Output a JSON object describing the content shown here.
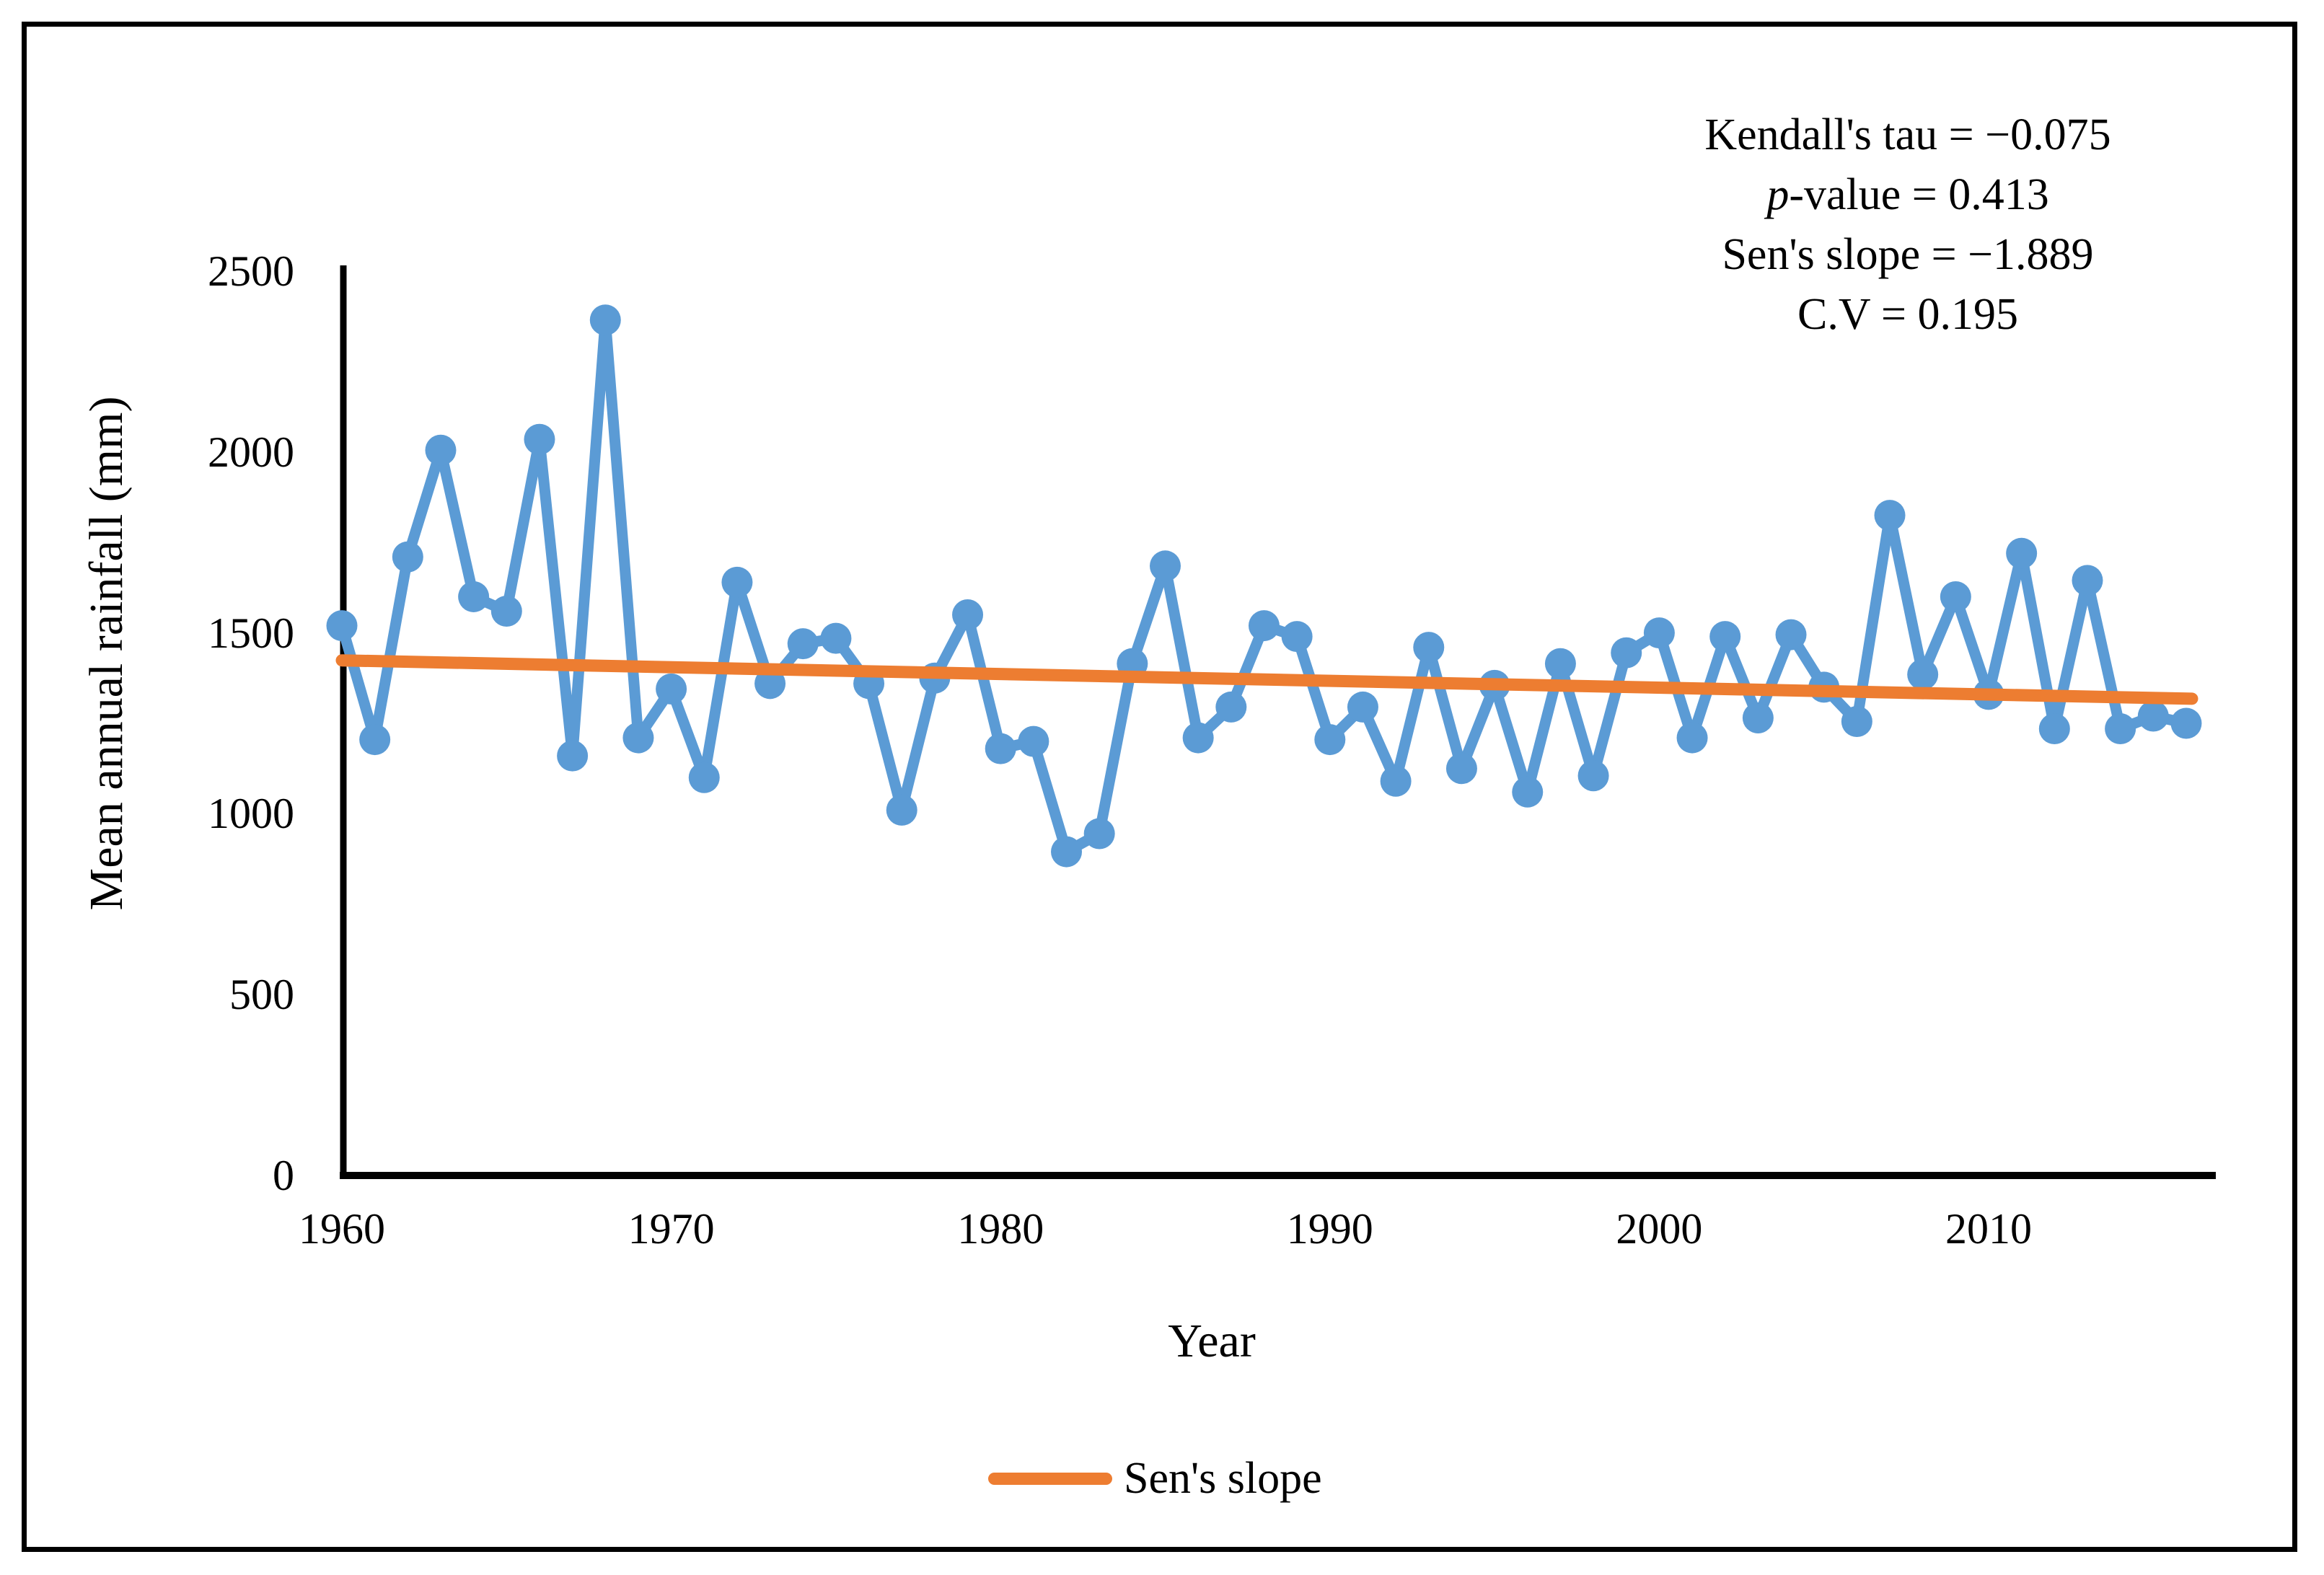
{
  "figure": {
    "y_axis_title": "Mean annual rainfall (mm)",
    "x_axis_title": "Year",
    "annotation_lines": [
      {
        "italic_prefix": "",
        "text": "Kendall's tau = −0.075"
      },
      {
        "italic_prefix": "p",
        "text": "-value = 0.413"
      },
      {
        "italic_prefix": "",
        "text": "Sen's slope = −1.889"
      },
      {
        "italic_prefix": "",
        "text": "C.V = 0.195"
      }
    ],
    "legend": {
      "label": "Sen's slope",
      "line_color": "#ED7D31"
    },
    "colors": {
      "series_blue": "#5B9BD5",
      "trend_orange": "#ED7D31",
      "axis_black": "#000000"
    }
  },
  "chart_data": {
    "type": "line",
    "title": "",
    "xlabel": "Year",
    "ylabel": "Mean annual rainfall (mm)",
    "xlim": [
      1960,
      2016
    ],
    "ylim": [
      0,
      2500
    ],
    "x_ticks": [
      1960,
      1970,
      1980,
      1990,
      2000,
      2010
    ],
    "y_ticks": [
      0,
      500,
      1000,
      1500,
      2000,
      2500
    ],
    "grid": false,
    "legend_position": "bottom-center",
    "marker": "circle",
    "series": [
      {
        "name": "Mean annual rainfall",
        "style": "line+markers",
        "color": "#5B9BD5",
        "x": [
          1960,
          1961,
          1962,
          1963,
          1964,
          1965,
          1966,
          1967,
          1968,
          1969,
          1970,
          1971,
          1972,
          1973,
          1974,
          1975,
          1976,
          1977,
          1978,
          1979,
          1980,
          1981,
          1982,
          1983,
          1984,
          1985,
          1986,
          1987,
          1988,
          1989,
          1990,
          1991,
          1992,
          1993,
          1994,
          1995,
          1996,
          1997,
          1998,
          1999,
          2000,
          2001,
          2002,
          2003,
          2004,
          2005,
          2006,
          2007,
          2008,
          2009,
          2010,
          2011,
          2012,
          2013,
          2014,
          2015,
          2016
        ],
        "values": [
          1520,
          1205,
          1710,
          2005,
          1600,
          1560,
          2035,
          1160,
          2365,
          1210,
          1345,
          1100,
          1640,
          1360,
          1470,
          1485,
          1360,
          1010,
          1375,
          1550,
          1180,
          1200,
          895,
          945,
          1415,
          1685,
          1210,
          1295,
          1520,
          1490,
          1205,
          1295,
          1090,
          1460,
          1125,
          1355,
          1060,
          1415,
          1105,
          1445,
          1500,
          1210,
          1490,
          1265,
          1495,
          1350,
          1255,
          1825,
          1385,
          1600,
          1330,
          1720,
          1235,
          1645,
          1235,
          1270,
          1250
        ]
      },
      {
        "name": "Sen's slope",
        "style": "trendline",
        "color": "#ED7D31",
        "x": [
          1960,
          2016
        ],
        "values": [
          1424,
          1318
        ]
      }
    ],
    "stats": {
      "kendalls_tau": -0.075,
      "p_value": 0.413,
      "sens_slope": -1.889,
      "cv": 0.195
    }
  }
}
